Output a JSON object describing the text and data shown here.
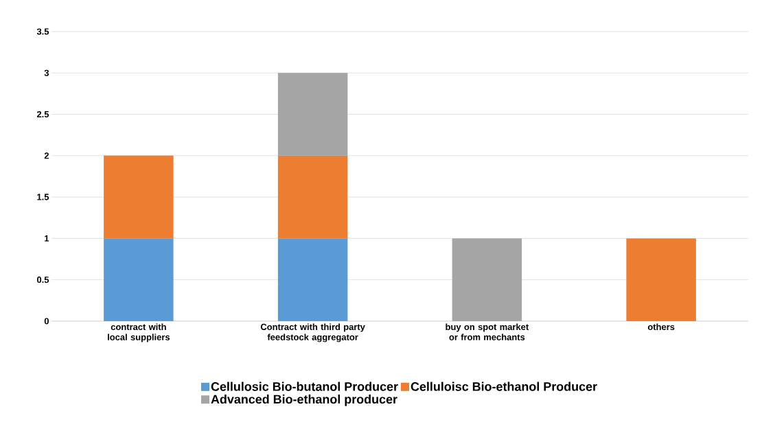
{
  "chart_data": {
    "type": "bar",
    "stacked": true,
    "categories": [
      "contract with local suppliers",
      "Contract with third party feedstock aggregator",
      "buy on spot market or from mechants",
      "others"
    ],
    "series": [
      {
        "name": "Cellulosic Bio-butanol Producer",
        "color": "#5b9bd5",
        "values": [
          1,
          1,
          null,
          null
        ]
      },
      {
        "name": "Celluloisc Bio-ethanol Producer",
        "color": "#ed7d31",
        "values": [
          1,
          1,
          null,
          1
        ]
      },
      {
        "name": "Advanced Bio-ethanol producer",
        "color": "#a5a5a5",
        "values": [
          null,
          1,
          1,
          null
        ]
      }
    ],
    "ylim": [
      0,
      3.5
    ],
    "yticks": [
      0,
      0.5,
      1,
      1.5,
      2,
      2.5,
      3,
      3.5
    ],
    "grid": "y",
    "legend": "bottom"
  }
}
